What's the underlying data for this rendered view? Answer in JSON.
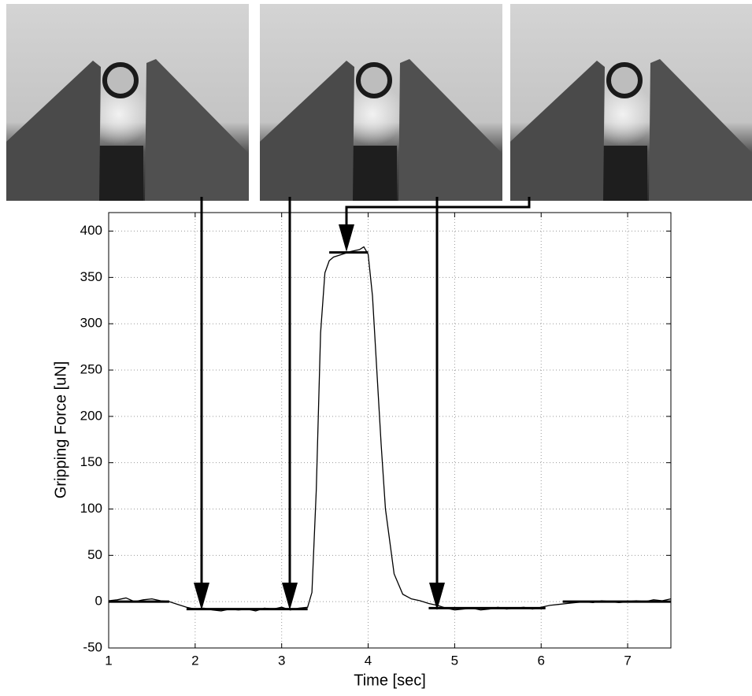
{
  "chart_data": {
    "type": "line",
    "xlabel": "Time [sec]",
    "ylabel": "Gripping Force [uN]",
    "xlim": [
      1,
      7.5
    ],
    "ylim": [
      -50,
      420
    ],
    "xticks": [
      1,
      2,
      3,
      4,
      5,
      6,
      7
    ],
    "yticks": [
      -50,
      0,
      50,
      100,
      150,
      200,
      250,
      300,
      350,
      400
    ],
    "grid": true,
    "series": [
      {
        "color": "#000000",
        "x": [
          1,
          1.1,
          1.2,
          1.3,
          1.4,
          1.5,
          1.6,
          1.7,
          1.8,
          1.9,
          2.0,
          2.1,
          2.2,
          2.3,
          2.4,
          2.5,
          2.6,
          2.7,
          2.8,
          2.9,
          3.0,
          3.1,
          3.2,
          3.3,
          3.35,
          3.4,
          3.45,
          3.5,
          3.55,
          3.6,
          3.7,
          3.8,
          3.9,
          3.95,
          4.0,
          4.05,
          4.1,
          4.15,
          4.2,
          4.3,
          4.4,
          4.5,
          4.6,
          4.7,
          4.8,
          4.9,
          5.0,
          5.1,
          5.2,
          5.3,
          5.4,
          5.5,
          5.6,
          5.7,
          5.8,
          5.9,
          6.0,
          6.1,
          6.2,
          6.3,
          6.4,
          6.5,
          6.6,
          6.7,
          6.8,
          6.9,
          7.0,
          7.1,
          7.2,
          7.3,
          7.4,
          7.5
        ],
        "values": [
          1,
          2,
          4,
          0,
          2,
          3,
          1,
          0,
          -3,
          -6,
          -8,
          -7,
          -9,
          -10,
          -8,
          -9,
          -8,
          -10,
          -7,
          -8,
          -6,
          -9,
          -7,
          -6,
          10,
          120,
          290,
          355,
          368,
          372,
          375,
          378,
          380,
          383,
          375,
          330,
          250,
          170,
          100,
          30,
          8,
          3,
          1,
          -2,
          -4,
          -7,
          -9,
          -8,
          -7,
          -9,
          -8,
          -6,
          -8,
          -7,
          -6,
          -8,
          -6,
          -4,
          -3,
          -2,
          -1,
          0,
          -1,
          1,
          0,
          -1,
          0,
          1,
          0,
          2,
          1,
          3
        ]
      },
      {
        "color": "#000000",
        "x": [
          1,
          1.7
        ],
        "values": [
          0,
          0
        ]
      },
      {
        "color": "#000000",
        "x": [
          1.9,
          3.3
        ],
        "values": [
          -8,
          -8
        ]
      },
      {
        "color": "#000000",
        "x": [
          3.55,
          4.0
        ],
        "values": [
          377,
          377
        ]
      },
      {
        "color": "#000000",
        "x": [
          4.7,
          6.05
        ],
        "values": [
          -7,
          -7
        ]
      },
      {
        "color": "#000000",
        "x": [
          6.25,
          7.5
        ],
        "values": [
          0,
          0
        ]
      }
    ]
  }
}
